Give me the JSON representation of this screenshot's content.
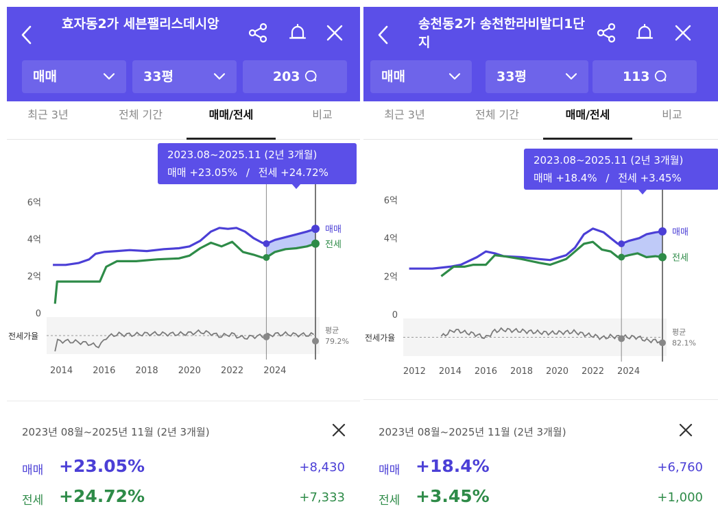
{
  "panels": [
    {
      "title": "효자동2가 세븐팰리스데시앙",
      "trade_type": "매매",
      "area": "33평",
      "count": "203",
      "tabs": [
        "최근 3년",
        "전체 기간",
        "매매/전세",
        "비교"
      ],
      "active_tab": "매매/전세",
      "tooltip": {
        "period": "2023.08~2025.11 (2년 3개월)",
        "sale_label": "매매 +23.05%",
        "jeonse_label": "전세 +24.72%",
        "separator": "/"
      },
      "y_ticks": [
        "6억",
        "4억",
        "2억",
        "0"
      ],
      "x_ticks": [
        "2014",
        "2016",
        "2018",
        "2020",
        "2022",
        "2024"
      ],
      "legend": {
        "sale": "매매",
        "jeonse": "전세"
      },
      "ratio_label": "전세가율",
      "avg_label": "평균",
      "avg_value": "79.2%",
      "summary": {
        "period": "2023년 08월~2025년 11월 (2년 3개월)",
        "sale_label": "매매",
        "sale_pct": "+23.05%",
        "sale_abs": "+8,430",
        "jeonse_label": "전세",
        "jeonse_pct": "+24.72%",
        "jeonse_abs": "+7,333"
      }
    },
    {
      "title": "송천동2가 송천한라비발디1단지",
      "trade_type": "매매",
      "area": "33평",
      "count": "113",
      "tabs": [
        "최근 3년",
        "전체 기간",
        "매매/전세",
        "비교"
      ],
      "active_tab": "매매/전세",
      "tooltip": {
        "period": "2023.08~2025.11 (2년 3개월)",
        "sale_label": "매매 +18.4%",
        "jeonse_label": "전세 +3.45%",
        "separator": "/"
      },
      "y_ticks": [
        "6억",
        "4억",
        "2억",
        "0"
      ],
      "x_ticks": [
        "2012",
        "2014",
        "2016",
        "2018",
        "2020",
        "2022",
        "2024"
      ],
      "legend": {
        "sale": "매매",
        "jeonse": "전세"
      },
      "ratio_label": "전세가율",
      "avg_label": "평균",
      "avg_value": "82.1%",
      "summary": {
        "period": "2023년 08월~2025년 11월 (2년 3개월)",
        "sale_label": "매매",
        "sale_pct": "+18.4%",
        "sale_abs": "+6,760",
        "jeonse_label": "전세",
        "jeonse_pct": "+3.45%",
        "jeonse_abs": "+1,000"
      }
    }
  ],
  "colors": {
    "header": "#5b4fe8",
    "sale": "#4b3fd6",
    "jeonse": "#2e8b48",
    "ratio": "#777777"
  },
  "chart_data": [
    {
      "type": "line",
      "x_unit": "year",
      "ylim": [
        0,
        6
      ],
      "y_unit": "억",
      "xlim": [
        2013.5,
        2025.9
      ],
      "series": [
        {
          "name": "매매",
          "x": [
            2013.6,
            2014.2,
            2014.8,
            2015.3,
            2015.6,
            2016.0,
            2016.6,
            2017.2,
            2018.0,
            2018.8,
            2019.5,
            2020.0,
            2020.5,
            2021.0,
            2021.4,
            2021.8,
            2022.2,
            2022.6,
            2023.0,
            2023.4,
            2023.6,
            2024.0,
            2024.5,
            2025.0,
            2025.5,
            2025.9
          ],
          "values": [
            2.6,
            2.6,
            2.7,
            2.9,
            3.2,
            3.3,
            3.35,
            3.4,
            3.35,
            3.45,
            3.5,
            3.6,
            3.9,
            4.4,
            4.6,
            4.55,
            4.6,
            4.4,
            4.05,
            3.8,
            3.75,
            3.95,
            4.1,
            4.25,
            4.4,
            4.55
          ]
        },
        {
          "name": "전세",
          "x": [
            2013.7,
            2013.8,
            2014.5,
            2015.0,
            2015.8,
            2016.1,
            2016.6,
            2017.5,
            2018.5,
            2019.5,
            2020.0,
            2020.5,
            2021.0,
            2021.5,
            2022.0,
            2022.5,
            2023.0,
            2023.4,
            2023.6,
            2024.0,
            2024.5,
            2025.0,
            2025.5,
            2025.9
          ],
          "values": [
            0.5,
            1.7,
            1.7,
            1.7,
            1.7,
            2.5,
            2.8,
            2.8,
            2.9,
            2.95,
            3.1,
            3.5,
            3.8,
            3.6,
            3.85,
            3.3,
            3.15,
            3.0,
            3.0,
            3.3,
            3.45,
            3.5,
            3.6,
            3.75
          ]
        }
      ]
    },
    {
      "type": "line",
      "x_unit": "year",
      "ylim": [
        0,
        6
      ],
      "y_unit": "억",
      "xlim": [
        2011.6,
        2025.9
      ],
      "series": [
        {
          "name": "매매",
          "x": [
            2011.7,
            2013.0,
            2014.0,
            2014.6,
            2015.5,
            2016.0,
            2016.5,
            2017.0,
            2018.0,
            2019.0,
            2019.6,
            2020.5,
            2021.0,
            2021.5,
            2022.0,
            2022.6,
            2023.0,
            2023.4,
            2023.6,
            2024.0,
            2024.6,
            2025.0,
            2025.5,
            2025.9
          ],
          "values": [
            2.4,
            2.4,
            2.5,
            2.6,
            3.0,
            3.3,
            3.2,
            3.05,
            3.0,
            2.9,
            2.85,
            3.1,
            3.5,
            4.2,
            4.5,
            4.3,
            4.0,
            3.7,
            3.7,
            3.85,
            4.0,
            4.2,
            4.3,
            4.35
          ]
        },
        {
          "name": "전세",
          "x": [
            2013.5,
            2014.2,
            2014.8,
            2015.3,
            2016.0,
            2016.5,
            2017.0,
            2018.0,
            2019.0,
            2019.6,
            2020.5,
            2021.0,
            2021.5,
            2022.0,
            2022.5,
            2023.0,
            2023.4,
            2023.6,
            2024.0,
            2024.5,
            2025.0,
            2025.5,
            2025.9
          ],
          "values": [
            2.0,
            2.5,
            2.5,
            2.6,
            2.6,
            3.1,
            3.05,
            2.9,
            2.7,
            2.6,
            2.9,
            3.3,
            3.7,
            3.8,
            3.4,
            3.3,
            3.0,
            3.0,
            3.1,
            3.2,
            3.0,
            3.05,
            3.0
          ]
        }
      ]
    }
  ]
}
